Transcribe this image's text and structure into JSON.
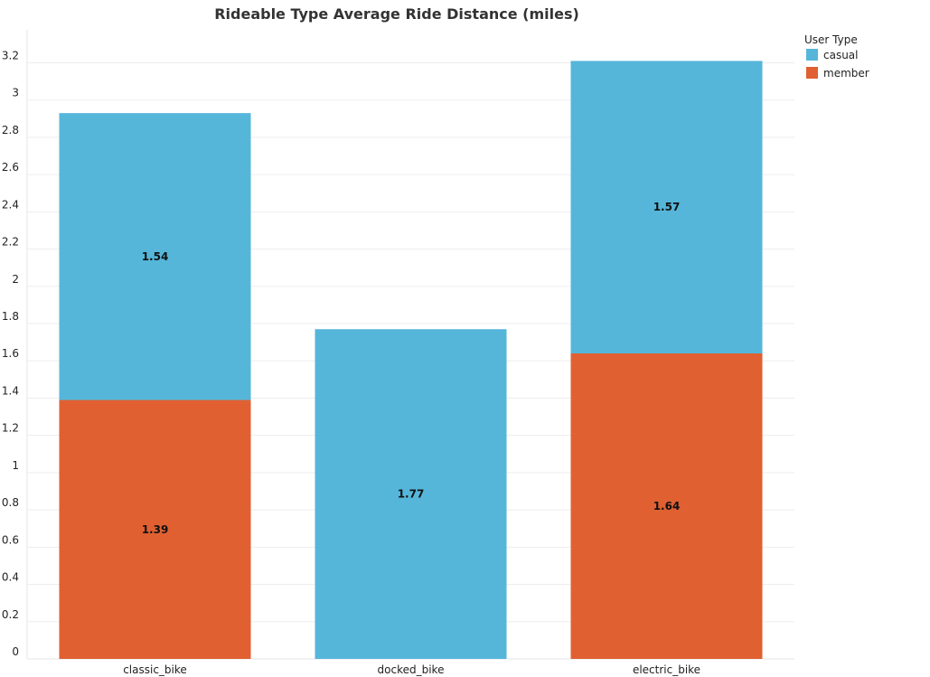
{
  "chart_data": {
    "type": "bar",
    "stacked": true,
    "title": "Rideable Type Average Ride Distance (miles)",
    "xlabel": "",
    "ylabel": "",
    "categories": [
      "classic_bike",
      "docked_bike",
      "electric_bike"
    ],
    "series": [
      {
        "name": "member",
        "color": "#e06032",
        "values": [
          1.39,
          null,
          1.64
        ],
        "labels": [
          "1.39",
          "",
          "1.64"
        ]
      },
      {
        "name": "casual",
        "color": "#55b6da",
        "values": [
          1.54,
          1.77,
          1.57
        ],
        "labels": [
          "1.54",
          "1.77",
          "1.57"
        ]
      }
    ],
    "yticks": [
      0,
      0.2,
      0.4,
      0.6,
      0.8,
      1,
      1.2,
      1.4,
      1.6,
      1.8,
      2,
      2.2,
      2.4,
      2.6,
      2.8,
      3,
      3.2
    ],
    "ytick_labels": [
      "0",
      "0.2",
      "0.4",
      "0.6",
      "0.8",
      "1",
      "1.2",
      "1.4",
      "1.6",
      "1.8",
      "2",
      "2.2",
      "2.4",
      "2.6",
      "2.8",
      "3",
      "3.2"
    ],
    "ylim": [
      0,
      3.35
    ],
    "grid": true,
    "legend": {
      "title": "User Type",
      "placement": "top-right",
      "entries": [
        {
          "name": "casual",
          "color": "#55b6da"
        },
        {
          "name": "member",
          "color": "#e06032"
        }
      ]
    }
  }
}
